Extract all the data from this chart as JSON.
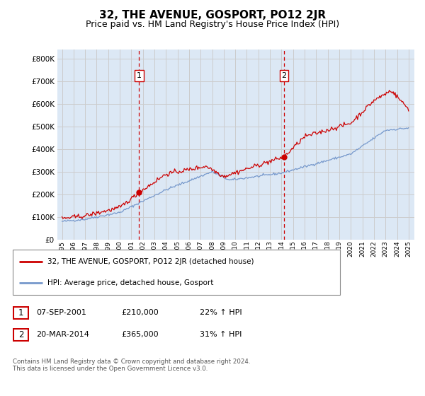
{
  "title": "32, THE AVENUE, GOSPORT, PO12 2JR",
  "subtitle": "Price paid vs. HM Land Registry's House Price Index (HPI)",
  "title_fontsize": 11,
  "subtitle_fontsize": 9,
  "legend_label_red": "32, THE AVENUE, GOSPORT, PO12 2JR (detached house)",
  "legend_label_blue": "HPI: Average price, detached house, Gosport",
  "annotation1_label": "1",
  "annotation1_date": "07-SEP-2001",
  "annotation1_price": "£210,000",
  "annotation1_hpi": "22% ↑ HPI",
  "annotation1_year": 2001.67,
  "annotation1_value": 210000,
  "annotation2_label": "2",
  "annotation2_date": "20-MAR-2014",
  "annotation2_price": "£365,000",
  "annotation2_hpi": "31% ↑ HPI",
  "annotation2_year": 2014.21,
  "annotation2_value": 365000,
  "footer": "Contains HM Land Registry data © Crown copyright and database right 2024.\nThis data is licensed under the Open Government Licence v3.0.",
  "ylim": [
    0,
    840000
  ],
  "yticks": [
    0,
    100000,
    200000,
    300000,
    400000,
    500000,
    600000,
    700000,
    800000
  ],
  "red_color": "#cc0000",
  "blue_color": "#7799cc",
  "grid_color": "#cccccc",
  "vline_color": "#cc0000",
  "background_color": "#ffffff",
  "plot_bg_color": "#dce8f5",
  "xlim_left": 1994.6,
  "xlim_right": 2025.5,
  "xtick_years": [
    1995,
    1996,
    1997,
    1998,
    1999,
    2000,
    2001,
    2002,
    2003,
    2004,
    2005,
    2006,
    2007,
    2008,
    2009,
    2010,
    2011,
    2012,
    2013,
    2014,
    2015,
    2016,
    2017,
    2018,
    2019,
    2020,
    2021,
    2022,
    2023,
    2024,
    2025
  ]
}
